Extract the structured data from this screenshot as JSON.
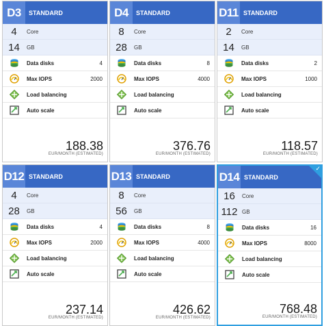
{
  "cards": [
    {
      "tier": "D3",
      "label": "STANDARD",
      "cores": "4",
      "core_label": "Core",
      "memory": "14",
      "memory_label": "GB",
      "data_disks_label": "Data disks",
      "data_disks": "4",
      "iops_label": "Max IOPS",
      "iops": "2000",
      "lb_label": "Load balancing",
      "autoscale_label": "Auto scale",
      "price": "188.38",
      "price_unit": "EUR/MONTH (ESTIMATED)",
      "selected": false
    },
    {
      "tier": "D4",
      "label": "STANDARD",
      "cores": "8",
      "core_label": "Core",
      "memory": "28",
      "memory_label": "GB",
      "data_disks_label": "Data disks",
      "data_disks": "8",
      "iops_label": "Max IOPS",
      "iops": "4000",
      "lb_label": "Load balancing",
      "autoscale_label": "Auto scale",
      "price": "376.76",
      "price_unit": "EUR/MONTH (ESTIMATED)",
      "selected": false
    },
    {
      "tier": "D11",
      "label": "STANDARD",
      "cores": "2",
      "core_label": "Core",
      "memory": "14",
      "memory_label": "GB",
      "data_disks_label": "Data disks",
      "data_disks": "2",
      "iops_label": "Max IOPS",
      "iops": "1000",
      "lb_label": "Load balancing",
      "autoscale_label": "Auto scale",
      "price": "118.57",
      "price_unit": "EUR/MONTH (ESTIMATED)",
      "selected": false
    },
    {
      "tier": "D12",
      "label": "STANDARD",
      "cores": "4",
      "core_label": "Core",
      "memory": "28",
      "memory_label": "GB",
      "data_disks_label": "Data disks",
      "data_disks": "4",
      "iops_label": "Max IOPS",
      "iops": "2000",
      "lb_label": "Load balancing",
      "autoscale_label": "Auto scale",
      "price": "237.14",
      "price_unit": "EUR/MONTH (ESTIMATED)",
      "selected": false
    },
    {
      "tier": "D13",
      "label": "STANDARD",
      "cores": "8",
      "core_label": "Core",
      "memory": "56",
      "memory_label": "GB",
      "data_disks_label": "Data disks",
      "data_disks": "8",
      "iops_label": "Max IOPS",
      "iops": "4000",
      "lb_label": "Load balancing",
      "autoscale_label": "Auto scale",
      "price": "426.62",
      "price_unit": "EUR/MONTH (ESTIMATED)",
      "selected": false
    },
    {
      "tier": "D14",
      "label": "STANDARD",
      "cores": "16",
      "core_label": "Core",
      "memory": "112",
      "memory_label": "GB",
      "data_disks_label": "Data disks",
      "data_disks": "16",
      "iops_label": "Max IOPS",
      "iops": "8000",
      "lb_label": "Load balancing",
      "autoscale_label": "Auto scale",
      "price": "768.48",
      "price_unit": "EUR/MONTH (ESTIMATED)",
      "selected": true
    }
  ],
  "icons": {
    "data_disks": "database-icon",
    "iops": "gauge-icon",
    "load_balancing": "load-balancer-icon",
    "auto_scale": "autoscale-icon"
  },
  "colors": {
    "header": "#3768c4",
    "tier_box": "#5a86d8",
    "spec_bg": "#e9effb",
    "selected_border": "#2f9fe0"
  }
}
